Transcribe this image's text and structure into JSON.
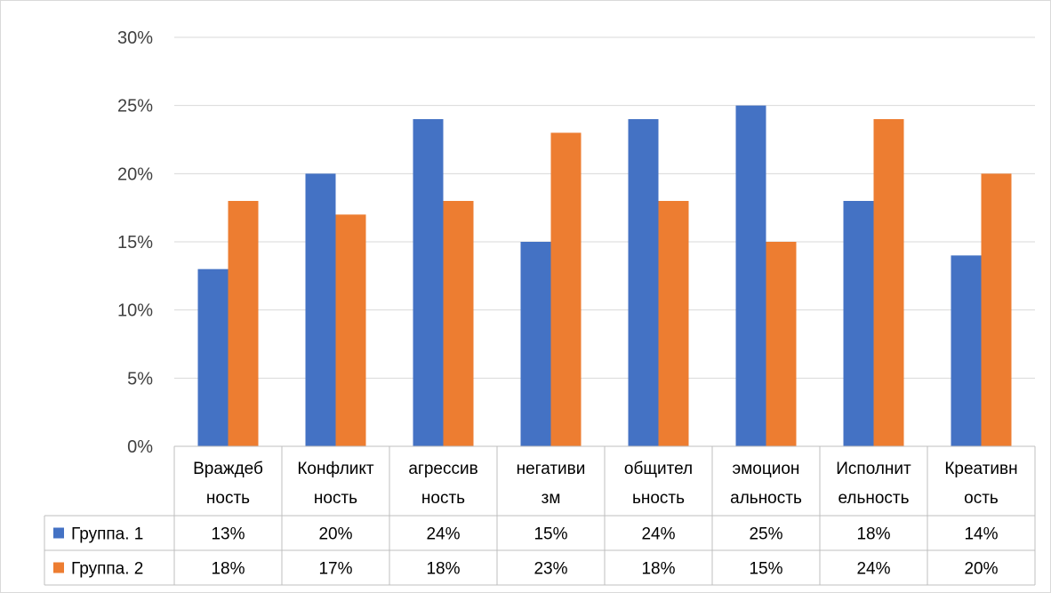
{
  "chart_data": {
    "type": "bar",
    "title": "",
    "xlabel": "",
    "ylabel": "",
    "ylim": [
      0,
      30
    ],
    "yticks": [
      0,
      5,
      10,
      15,
      20,
      25,
      30
    ],
    "ytick_labels": [
      "0%",
      "5%",
      "10%",
      "15%",
      "20%",
      "25%",
      "30%"
    ],
    "grid": true,
    "legend": "data-table",
    "categories": [
      [
        "Враждеб",
        "ность"
      ],
      [
        "Конфликт",
        "ность"
      ],
      [
        "агрессив",
        "ность"
      ],
      [
        "негативи",
        "зм"
      ],
      [
        "общител",
        "ьность"
      ],
      [
        "эмоцион",
        "альность"
      ],
      [
        "Исполнит",
        "ельность"
      ],
      [
        "Креативн",
        "ость"
      ]
    ],
    "series": [
      {
        "name": "Группа. 1",
        "color": "#4472C4",
        "values": [
          13,
          20,
          24,
          15,
          24,
          25,
          18,
          14
        ],
        "labels": [
          "13%",
          "20%",
          "24%",
          "15%",
          "24%",
          "25%",
          "18%",
          "14%"
        ]
      },
      {
        "name": "Группа. 2",
        "color": "#ED7D31",
        "values": [
          18,
          17,
          18,
          23,
          18,
          15,
          24,
          20
        ],
        "labels": [
          "18%",
          "17%",
          "18%",
          "23%",
          "18%",
          "15%",
          "24%",
          "20%"
        ]
      }
    ]
  }
}
